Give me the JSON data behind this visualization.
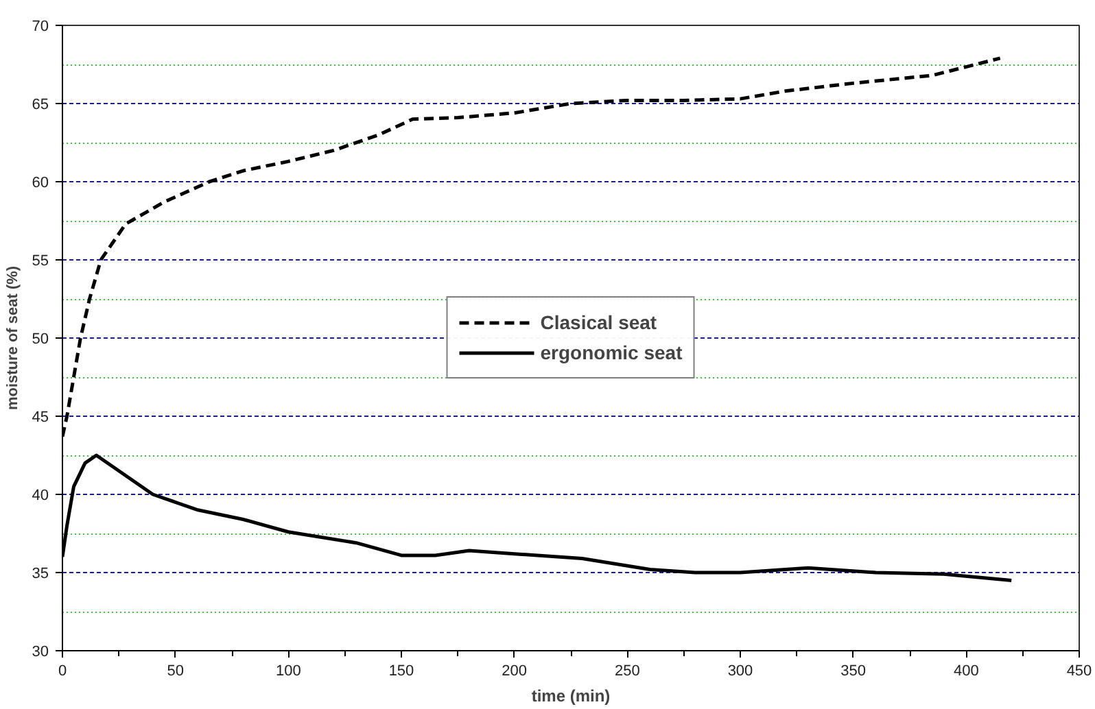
{
  "chart_data": {
    "type": "line",
    "xlabel": "time (min)",
    "ylabel": "moisture of seat (%)",
    "xlim": [
      0,
      450
    ],
    "ylim": [
      30,
      70
    ],
    "xticks": [
      0,
      {
        "value": 25,
        "label": null
      },
      50,
      {
        "value": 75,
        "label": null
      },
      100,
      {
        "value": 125,
        "label": null
      },
      150,
      {
        "value": 175,
        "label": null
      },
      200,
      {
        "value": 225,
        "label": null
      },
      250,
      {
        "value": 275,
        "label": null
      },
      300,
      {
        "value": 325,
        "label": null
      },
      350,
      {
        "value": 375,
        "label": null
      },
      400,
      {
        "value": 425,
        "label": null
      },
      450
    ],
    "yticks": [
      30,
      {
        "value": 32.5,
        "label": null
      },
      35,
      {
        "value": 37.5,
        "label": null
      },
      40,
      {
        "value": 42.5,
        "label": null
      },
      45,
      {
        "value": 47.5,
        "label": null
      },
      50,
      {
        "value": 52.5,
        "label": null
      },
      55,
      {
        "value": 57.5,
        "label": null
      },
      60,
      {
        "value": 62.5,
        "label": null
      },
      65,
      {
        "value": 67.5,
        "label": null
      },
      70
    ],
    "grid": "y",
    "legend": "center",
    "marker": "none",
    "series": [
      {
        "name": "Clasical seat",
        "color": "#000000",
        "line_style": "dashed",
        "x": [
          0,
          2,
          5,
          8,
          12,
          17,
          28,
          45,
          65,
          80,
          100,
          120,
          140,
          155,
          175,
          200,
          225,
          250,
          275,
          300,
          320,
          350,
          385,
          415
        ],
        "values": [
          43.7,
          45,
          47.5,
          50,
          52.5,
          55,
          57.3,
          58.7,
          60,
          60.7,
          61.3,
          62,
          63,
          64,
          64.1,
          64.4,
          65,
          65.2,
          65.2,
          65.3,
          65.8,
          66.3,
          66.8,
          67.9
        ]
      },
      {
        "name": "ergonomic seat",
        "color": "#000000",
        "line_style": "solid",
        "x": [
          0,
          2,
          5,
          10,
          15,
          25,
          40,
          60,
          80,
          100,
          130,
          150,
          165,
          180,
          200,
          230,
          260,
          280,
          300,
          330,
          360,
          390,
          420
        ],
        "values": [
          36,
          38,
          40.5,
          42,
          42.5,
          41.5,
          40,
          39,
          38.4,
          37.6,
          36.9,
          36.1,
          36.1,
          36.4,
          36.2,
          35.9,
          35.2,
          35,
          35,
          35.3,
          35,
          34.9,
          34.5
        ]
      }
    ]
  }
}
